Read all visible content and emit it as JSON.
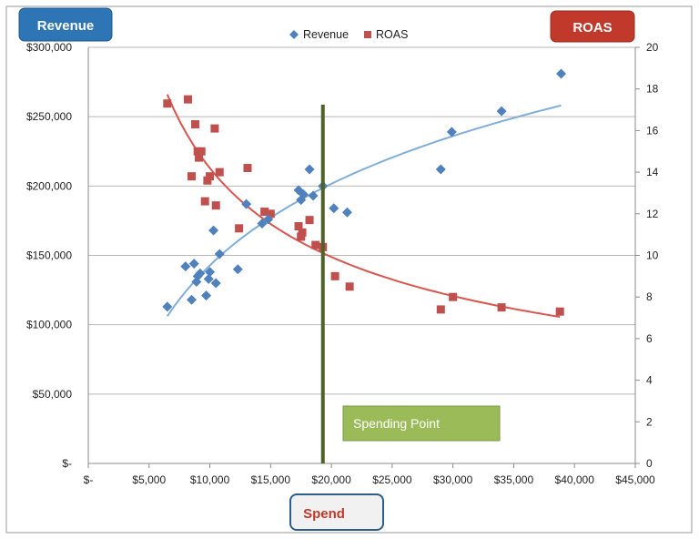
{
  "chart_data": {
    "type": "scatter",
    "xlim": [
      0,
      45000
    ],
    "ylim_left": [
      0,
      300000
    ],
    "ylim_right": [
      0,
      20
    ],
    "x_ticks": [
      "$-",
      "$5,000",
      "$10,000",
      "$15,000",
      "$20,000",
      "$25,000",
      "$30,000",
      "$35,000",
      "$40,000",
      "$45,000"
    ],
    "y_left_ticks": [
      "$-",
      "$50,000",
      "$100,000",
      "$150,000",
      "$200,000",
      "$250,000",
      "$300,000"
    ],
    "y_right_ticks": [
      "0",
      "2",
      "4",
      "6",
      "8",
      "10",
      "12",
      "14",
      "16",
      "18",
      "20"
    ],
    "grid": "horizontal",
    "legend_position": "top",
    "series": [
      {
        "name": "Revenue",
        "axis": "left",
        "marker": "diamond",
        "color": "#4F81BD",
        "trend_color": "#7FAEDB",
        "points": [
          [
            6500,
            113000
          ],
          [
            8000,
            142000
          ],
          [
            8500,
            118000
          ],
          [
            8700,
            144000
          ],
          [
            8900,
            131000
          ],
          [
            9000,
            135000
          ],
          [
            9200,
            137000
          ],
          [
            9700,
            121000
          ],
          [
            9900,
            133000
          ],
          [
            10000,
            138000
          ],
          [
            10300,
            168000
          ],
          [
            10500,
            130000
          ],
          [
            10800,
            151000
          ],
          [
            12300,
            140000
          ],
          [
            13000,
            187000
          ],
          [
            14300,
            173000
          ],
          [
            14800,
            176000
          ],
          [
            17300,
            197000
          ],
          [
            17500,
            190000
          ],
          [
            17700,
            194000
          ],
          [
            18200,
            212000
          ],
          [
            18500,
            193000
          ],
          [
            19300,
            200000
          ],
          [
            20200,
            184000
          ],
          [
            21300,
            181000
          ],
          [
            29000,
            212000
          ],
          [
            29900,
            239000
          ],
          [
            34000,
            254000
          ],
          [
            38900,
            281000
          ]
        ]
      },
      {
        "name": "ROAS",
        "axis": "right",
        "marker": "square",
        "color": "#C0504D",
        "trend_color": "#D9554E",
        "points": [
          [
            6500,
            17.3
          ],
          [
            8200,
            17.5
          ],
          [
            8500,
            13.8
          ],
          [
            8800,
            16.3
          ],
          [
            9000,
            15.0
          ],
          [
            9100,
            14.7
          ],
          [
            9300,
            15.0
          ],
          [
            9600,
            12.6
          ],
          [
            9800,
            13.6
          ],
          [
            10000,
            13.8
          ],
          [
            10400,
            16.1
          ],
          [
            10500,
            12.4
          ],
          [
            10800,
            14.0
          ],
          [
            12400,
            11.3
          ],
          [
            13100,
            14.2
          ],
          [
            14500,
            12.1
          ],
          [
            15000,
            12.0
          ],
          [
            17300,
            11.4
          ],
          [
            17500,
            10.9
          ],
          [
            17600,
            11.1
          ],
          [
            18200,
            11.7
          ],
          [
            18700,
            10.5
          ],
          [
            19300,
            10.4
          ],
          [
            20300,
            9.0
          ],
          [
            21500,
            8.5
          ],
          [
            29000,
            7.4
          ],
          [
            30000,
            8.0
          ],
          [
            34000,
            7.5
          ],
          [
            38800,
            7.3
          ]
        ]
      }
    ],
    "vertical_line": {
      "x": 19300,
      "color": "#4F6228"
    },
    "annotation": {
      "text": "Spending Point",
      "color": "#9BBB59"
    },
    "badges": {
      "left_axis": {
        "text": "Revenue",
        "color": "#2E75B6"
      },
      "right_axis": {
        "text": "ROAS",
        "color": "#C0392B"
      },
      "x_axis": {
        "text": "Spend",
        "color": "#C0392B"
      }
    }
  }
}
